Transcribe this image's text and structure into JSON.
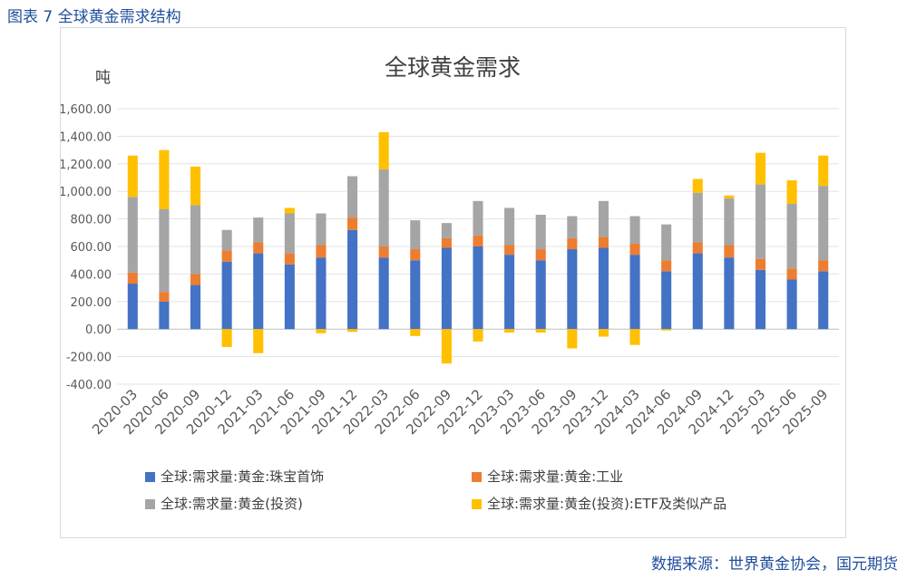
{
  "figure_title": "图表 7 全球黄金需求结构",
  "source": "数据来源：世界黄金协会，国元期货",
  "colors": {
    "jewelry": "#4472c4",
    "industry": "#ed7d31",
    "investment": "#a5a5a5",
    "etf": "#ffc000",
    "text_accent": "#1f4e9c"
  },
  "chart_data": {
    "type": "bar",
    "stacked": true,
    "title": "全球黄金需求",
    "ylabel": "吨",
    "ylim": [
      -400,
      1600
    ],
    "yticks": [
      1600,
      1400,
      1200,
      1000,
      800,
      600,
      400,
      200,
      0,
      -200,
      -400
    ],
    "ytick_labels": [
      "1,600.00",
      "1,400.00",
      "1,200.00",
      "1,000.00",
      "800.00",
      "600.00",
      "400.00",
      "200.00",
      "0.00",
      "-200.00",
      "-400.00"
    ],
    "grid": true,
    "legend_position": "bottom",
    "categories": [
      "2020-03",
      "2020-06",
      "2020-09",
      "2020-12",
      "2021-03",
      "2021-06",
      "2021-09",
      "2021-12",
      "2022-03",
      "2022-06",
      "2022-09",
      "2022-12",
      "2023-03",
      "2023-06",
      "2023-09",
      "2023-12",
      "2024-03",
      "2024-06",
      "2024-09",
      "2024-12",
      "2025-03",
      "2025-06",
      "2025-09"
    ],
    "series": [
      {
        "name": "全球:需求量:黄金:珠宝首饰",
        "color_key": "jewelry",
        "values": [
          330,
          200,
          320,
          490,
          550,
          470,
          520,
          720,
          520,
          500,
          590,
          600,
          540,
          500,
          580,
          590,
          540,
          420,
          550,
          520,
          430,
          360,
          420
        ]
      },
      {
        "name": "全球:需求量:黄金:工业",
        "color_key": "industry",
        "values": [
          80,
          70,
          80,
          80,
          80,
          80,
          90,
          90,
          80,
          80,
          70,
          80,
          70,
          80,
          80,
          80,
          80,
          80,
          80,
          90,
          80,
          80,
          80
        ]
      },
      {
        "name": "全球:需求量:黄金(投资)",
        "color_key": "investment",
        "values": [
          550,
          600,
          500,
          150,
          180,
          290,
          230,
          300,
          560,
          210,
          110,
          250,
          270,
          250,
          160,
          260,
          200,
          260,
          360,
          340,
          540,
          470,
          540
        ]
      },
      {
        "name": "全球:需求量:黄金(投资):ETF及类似产品",
        "color_key": "etf",
        "values": [
          300,
          430,
          280,
          -130,
          -175,
          40,
          -30,
          -20,
          270,
          -50,
          -250,
          -90,
          -25,
          -25,
          -140,
          -55,
          -115,
          -10,
          100,
          20,
          230,
          170,
          220
        ]
      }
    ]
  }
}
